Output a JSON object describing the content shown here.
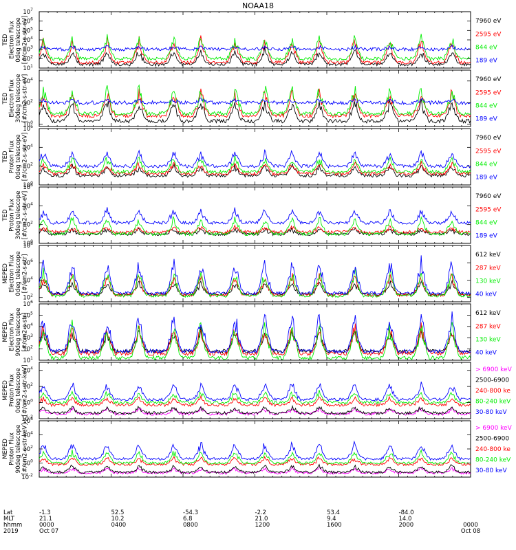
{
  "title": "NOAA18",
  "colors": {
    "black": "#000000",
    "red": "#ff0000",
    "green": "#00ee00",
    "blue": "#0000ff",
    "magenta": "#ff00ff"
  },
  "chart_data": [
    {
      "type": "line",
      "ylabel_lines": [
        "TED",
        "Electron Flux",
        "0deg telescope",
        "[#/cm2-s-str-eV]"
      ],
      "log_scale": true,
      "y_exponents": [
        1,
        2,
        3,
        4,
        5,
        6,
        7
      ],
      "y_range": [
        1,
        7
      ],
      "legend": [
        {
          "label": "7960 eV",
          "color": "black"
        },
        {
          "label": "2595 eV",
          "color": "red"
        },
        {
          "label": "844 eV",
          "color": "green"
        },
        {
          "label": "189 eV",
          "color": "blue"
        }
      ],
      "series": [
        {
          "label": "7960 eV",
          "base": 1.4,
          "peak": 3.2,
          "color": "black"
        },
        {
          "label": "2595 eV",
          "base": 1.6,
          "peak": 4.5,
          "color": "red"
        },
        {
          "label": "844 eV",
          "base": 2.0,
          "peak": 4.8,
          "color": "green"
        },
        {
          "label": "189 eV",
          "base": 3.0,
          "peak": 3.3,
          "color": "blue"
        }
      ]
    },
    {
      "type": "line",
      "ylabel_lines": [
        "TED",
        "Electron Flux",
        "30deg telescope",
        "[#/cm2-s-str-eV]"
      ],
      "log_scale": true,
      "y_exponents": [
        0,
        2,
        4
      ],
      "y_range": [
        -0.2,
        5
      ],
      "legend": [
        {
          "label": "7960 eV",
          "color": "black"
        },
        {
          "label": "2595 eV",
          "color": "red"
        },
        {
          "label": "844 eV",
          "color": "green"
        },
        {
          "label": "189 eV",
          "color": "blue"
        }
      ],
      "series": [
        {
          "label": "7960 eV",
          "base": 0.3,
          "peak": 2.5,
          "color": "black"
        },
        {
          "label": "2595 eV",
          "base": 0.8,
          "peak": 3.5,
          "color": "red"
        },
        {
          "label": "844 eV",
          "base": 1.0,
          "peak": 3.8,
          "color": "green"
        },
        {
          "label": "189 eV",
          "base": 2.0,
          "peak": 2.3,
          "color": "blue"
        }
      ]
    },
    {
      "type": "line",
      "ylabel_lines": [
        "TED",
        "Proton Flux",
        "0deg telescope",
        "[#/cm2-s-str-eV]"
      ],
      "log_scale": true,
      "y_exponents": [
        0,
        2,
        4,
        6
      ],
      "y_range": [
        0,
        6
      ],
      "legend": [
        {
          "label": "7960 eV",
          "color": "black"
        },
        {
          "label": "2595 eV",
          "color": "red"
        },
        {
          "label": "844 eV",
          "color": "green"
        },
        {
          "label": "189 eV",
          "color": "blue"
        }
      ],
      "series": [
        {
          "label": "7960 eV",
          "base": 1.0,
          "peak": 2.2,
          "color": "black"
        },
        {
          "label": "2595 eV",
          "base": 1.2,
          "peak": 2.5,
          "color": "red"
        },
        {
          "label": "844 eV",
          "base": 1.4,
          "peak": 3.2,
          "color": "green"
        },
        {
          "label": "189 eV",
          "base": 2.0,
          "peak": 3.8,
          "color": "blue"
        }
      ]
    },
    {
      "type": "line",
      "ylabel_lines": [
        "TED",
        "Proton Flux",
        "30deg telescope",
        "[#/cm2-s-str-eV]"
      ],
      "log_scale": true,
      "y_exponents": [
        0,
        2,
        4,
        6
      ],
      "y_range": [
        0,
        6
      ],
      "legend": [
        {
          "label": "7960 eV",
          "color": "black"
        },
        {
          "label": "2595 eV",
          "color": "red"
        },
        {
          "label": "844 eV",
          "color": "green"
        },
        {
          "label": "189 eV",
          "color": "blue"
        }
      ],
      "series": [
        {
          "label": "7960 eV",
          "base": 1.0,
          "peak": 1.6,
          "color": "black"
        },
        {
          "label": "2595 eV",
          "base": 1.2,
          "peak": 1.8,
          "color": "red"
        },
        {
          "label": "844 eV",
          "base": 1.0,
          "peak": 3.0,
          "color": "green"
        },
        {
          "label": "189 eV",
          "base": 2.2,
          "peak": 3.8,
          "color": "blue"
        }
      ]
    },
    {
      "type": "line",
      "ylabel_lines": [
        "MEPED",
        "Electron Flux",
        "0deg telescope",
        "[#/cm2-s-str]"
      ],
      "log_scale": true,
      "y_exponents": [
        2,
        4,
        6,
        8
      ],
      "y_range": [
        1.5,
        8
      ],
      "legend": [
        {
          "label": "612 keV",
          "color": "black"
        },
        {
          "label": "287 keV",
          "color": "red"
        },
        {
          "label": "130 keV",
          "color": "green"
        },
        {
          "label": "40 keV",
          "color": "blue"
        }
      ],
      "series": [
        {
          "label": "612 keV",
          "base": 2.4,
          "peak": 4.0,
          "color": "black"
        },
        {
          "label": "287 keV",
          "base": 2.3,
          "peak": 5.0,
          "color": "red"
        },
        {
          "label": "130 keV",
          "base": 2.2,
          "peak": 5.5,
          "color": "green"
        },
        {
          "label": "40 keV",
          "base": 2.5,
          "peak": 7.0,
          "color": "blue"
        }
      ]
    },
    {
      "type": "line",
      "ylabel_lines": [
        "MEPED",
        "Electron Flux",
        "90deg telescope",
        "[#/cm2-s-str]"
      ],
      "log_scale": true,
      "y_exponents": [
        1,
        2,
        3,
        4,
        5,
        6
      ],
      "y_range": [
        1,
        6
      ],
      "legend": [
        {
          "label": "612 keV",
          "color": "black"
        },
        {
          "label": "287 keV",
          "color": "red"
        },
        {
          "label": "130 keV",
          "color": "green"
        },
        {
          "label": "40 keV",
          "color": "blue"
        }
      ],
      "series": [
        {
          "label": "612 keV",
          "base": 1.8,
          "peak": 4.0,
          "color": "black"
        },
        {
          "label": "287 keV",
          "base": 1.6,
          "peak": 4.5,
          "color": "red"
        },
        {
          "label": "130 keV",
          "base": 1.2,
          "peak": 4.8,
          "color": "green"
        },
        {
          "label": "40 keV",
          "base": 1.8,
          "peak": 5.7,
          "color": "blue"
        }
      ]
    },
    {
      "type": "line",
      "ylabel_lines": [
        "MEPED",
        "Proton Flux",
        "0deg telescope",
        "[#/cm2-s-str-keV]"
      ],
      "log_scale": true,
      "y_exponents": [
        -2,
        0,
        2,
        4
      ],
      "y_range": [
        -2,
        5
      ],
      "legend": [
        {
          "label": "> 6900 keV",
          "color": "magenta"
        },
        {
          "label": "2500-6900",
          "color": "black"
        },
        {
          "label": "240-800 ke",
          "color": "red"
        },
        {
          "label": "80-240 keV",
          "color": "green"
        },
        {
          "label": "30-80 keV",
          "color": "blue"
        }
      ],
      "series": [
        {
          "label": "> 6900 keV",
          "base": -1.4,
          "peak": -0.6,
          "color": "magenta"
        },
        {
          "label": "2500-6900",
          "base": -1.3,
          "peak": -0.4,
          "color": "black"
        },
        {
          "label": "240-800 ke",
          "base": -0.3,
          "peak": 0.8,
          "color": "red"
        },
        {
          "label": "80-240 keV",
          "base": 0.0,
          "peak": 1.6,
          "color": "green"
        },
        {
          "label": "30-80 keV",
          "base": 0.4,
          "peak": 2.8,
          "color": "blue"
        }
      ]
    },
    {
      "type": "line",
      "ylabel_lines": [
        "MEPED",
        "Proton Flux",
        "90deg telescope",
        "[#/cm2-s-str-keV]"
      ],
      "log_scale": true,
      "y_exponents": [
        -2,
        0,
        2,
        4,
        6
      ],
      "y_range": [
        -2,
        6
      ],
      "legend": [
        {
          "label": "> 6900 keV",
          "color": "magenta"
        },
        {
          "label": "2500-6900",
          "color": "black"
        },
        {
          "label": "240-800 ke",
          "color": "red"
        },
        {
          "label": "80-240 keV",
          "color": "green"
        },
        {
          "label": "30-80 keV",
          "color": "blue"
        }
      ],
      "series": [
        {
          "label": "> 6900 keV",
          "base": -1.4,
          "peak": -0.6,
          "color": "magenta"
        },
        {
          "label": "2500-6900",
          "base": -1.3,
          "peak": -0.2,
          "color": "black"
        },
        {
          "label": "240-800 ke",
          "base": -0.2,
          "peak": 1.0,
          "color": "red"
        },
        {
          "label": "80-240 keV",
          "base": 0.0,
          "peak": 2.0,
          "color": "green"
        },
        {
          "label": "30-80 keV",
          "base": 0.6,
          "peak": 3.2,
          "color": "blue"
        }
      ]
    }
  ],
  "x_axis": {
    "row_labels": [
      "Lat",
      "MLT",
      "hhmm",
      "2019"
    ],
    "ticks": [
      {
        "Lat": "-1.3",
        "MLT": "21.1",
        "hhmm": "0000",
        "2019": "Oct 07"
      },
      {
        "Lat": "52.5",
        "MLT": "10.2",
        "hhmm": "0400",
        "2019": ""
      },
      {
        "Lat": "-54.3",
        "MLT": "6.8",
        "hhmm": "0800",
        "2019": ""
      },
      {
        "Lat": "-2.2",
        "MLT": "21.0",
        "hhmm": "1200",
        "2019": ""
      },
      {
        "Lat": "53.4",
        "MLT": "9.4",
        "hhmm": "1600",
        "2019": ""
      },
      {
        "Lat": "-84.0",
        "MLT": "14.0",
        "hhmm": "2000",
        "2019": ""
      },
      {
        "Lat": "",
        "MLT": "",
        "hhmm": "0000",
        "2019": "Oct 08"
      }
    ]
  }
}
